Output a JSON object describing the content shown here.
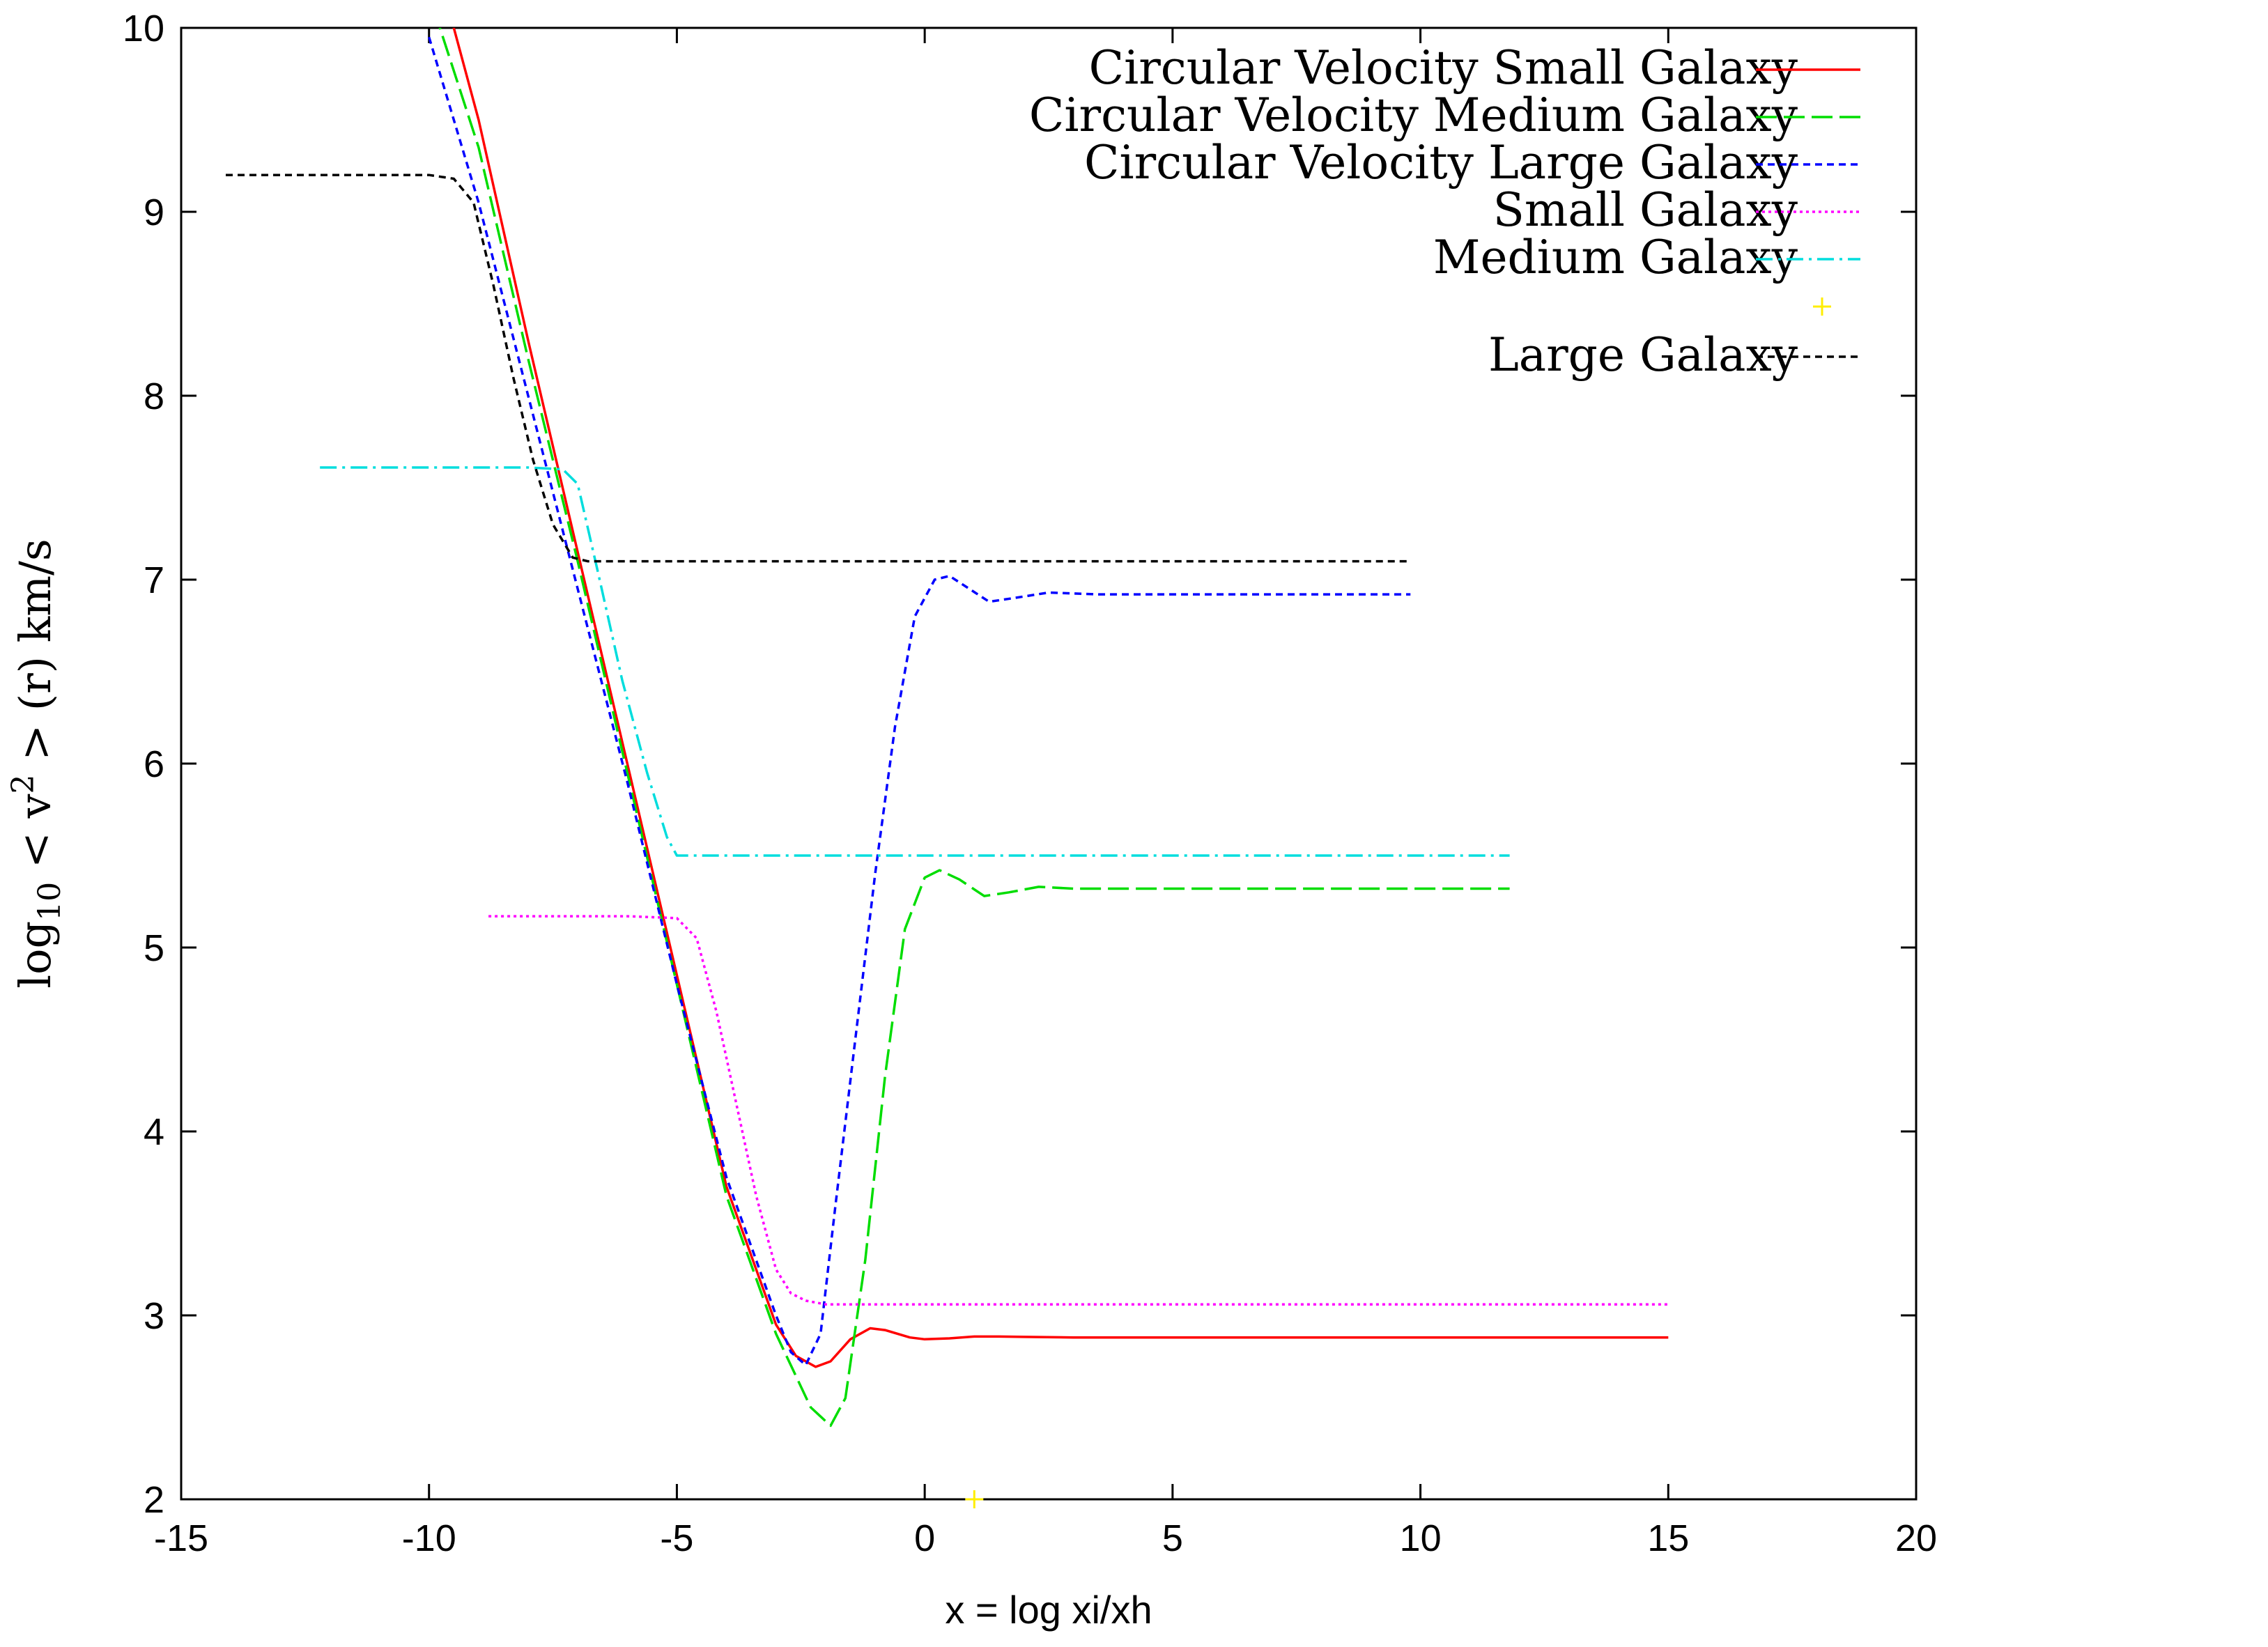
{
  "chart_data": {
    "type": "line",
    "xlabel": "x = log xi/xh",
    "ylabel_parts": {
      "pre": "log",
      "sub": "10",
      "mid": " < v",
      "sup": "2",
      "post": " > (r) km/s"
    },
    "xlim": [
      -15,
      20
    ],
    "ylim": [
      2,
      10
    ],
    "xticks": [
      -15,
      -10,
      -5,
      0,
      5,
      10,
      15,
      20
    ],
    "yticks": [
      2,
      3,
      4,
      5,
      6,
      7,
      8,
      9,
      10
    ],
    "grid": false,
    "legend_position": "top-right",
    "series": [
      {
        "name": "Circular Velocity Small Galaxy",
        "color": "#ff0000",
        "dash": "solid",
        "points": [
          [
            -10.0,
            10.5
          ],
          [
            -9,
            9.5
          ],
          [
            -8,
            8.3
          ],
          [
            -7,
            7.15
          ],
          [
            -6,
            6.0
          ],
          [
            -5,
            4.85
          ],
          [
            -4,
            3.7
          ],
          [
            -3,
            2.95
          ],
          [
            -2.6,
            2.78
          ],
          [
            -2.2,
            2.72
          ],
          [
            -1.9,
            2.75
          ],
          [
            -1.5,
            2.87
          ],
          [
            -1.1,
            2.93
          ],
          [
            -0.8,
            2.92
          ],
          [
            -0.3,
            2.88
          ],
          [
            0,
            2.87
          ],
          [
            0.5,
            2.875
          ],
          [
            1,
            2.885
          ],
          [
            1.5,
            2.885
          ],
          [
            2,
            2.883
          ],
          [
            3,
            2.88
          ],
          [
            5,
            2.88
          ],
          [
            10,
            2.88
          ],
          [
            15,
            2.88
          ]
        ]
      },
      {
        "name": "Circular Velocity Medium Galaxy",
        "color": "#00dd00",
        "dash": "long",
        "points": [
          [
            -9.9,
            10.1
          ],
          [
            -9,
            9.35
          ],
          [
            -8,
            8.2
          ],
          [
            -7,
            7.1
          ],
          [
            -6,
            5.95
          ],
          [
            -5,
            4.8
          ],
          [
            -4,
            3.65
          ],
          [
            -3,
            2.9
          ],
          [
            -2.3,
            2.5
          ],
          [
            -1.9,
            2.4
          ],
          [
            -1.6,
            2.55
          ],
          [
            -1.2,
            3.3
          ],
          [
            -0.8,
            4.3
          ],
          [
            -0.4,
            5.1
          ],
          [
            0,
            5.38
          ],
          [
            0.3,
            5.42
          ],
          [
            0.7,
            5.37
          ],
          [
            1.2,
            5.28
          ],
          [
            1.7,
            5.3
          ],
          [
            2.3,
            5.33
          ],
          [
            3,
            5.32
          ],
          [
            5,
            5.32
          ],
          [
            8,
            5.32
          ],
          [
            11.8,
            5.32
          ]
        ]
      },
      {
        "name": "Circular Velocity Large Galaxy",
        "color": "#0000ff",
        "dash": "short",
        "points": [
          [
            -10.0,
            9.95
          ],
          [
            -9,
            9.05
          ],
          [
            -8,
            8.0
          ],
          [
            -7,
            6.95
          ],
          [
            -6,
            5.9
          ],
          [
            -5,
            4.8
          ],
          [
            -4,
            3.75
          ],
          [
            -3,
            3.0
          ],
          [
            -2.7,
            2.8
          ],
          [
            -2.4,
            2.73
          ],
          [
            -2.1,
            2.9
          ],
          [
            -1.8,
            3.6
          ],
          [
            -1.4,
            4.5
          ],
          [
            -1,
            5.4
          ],
          [
            -0.6,
            6.2
          ],
          [
            -0.2,
            6.8
          ],
          [
            0.2,
            7.0
          ],
          [
            0.5,
            7.02
          ],
          [
            0.9,
            6.95
          ],
          [
            1.3,
            6.88
          ],
          [
            1.8,
            6.9
          ],
          [
            2.5,
            6.93
          ],
          [
            3.5,
            6.92
          ],
          [
            6,
            6.92
          ],
          [
            9.8,
            6.92
          ]
        ]
      },
      {
        "name": "Small Galaxy",
        "color": "#ff00ff",
        "dash": "dot",
        "points": [
          [
            -8.8,
            5.17
          ],
          [
            -6,
            5.17
          ],
          [
            -5,
            5.16
          ],
          [
            -4.6,
            5.05
          ],
          [
            -4.2,
            4.65
          ],
          [
            -3.8,
            4.15
          ],
          [
            -3.4,
            3.65
          ],
          [
            -3,
            3.25
          ],
          [
            -2.7,
            3.12
          ],
          [
            -2.4,
            3.08
          ],
          [
            -2,
            3.06
          ],
          [
            0,
            3.06
          ],
          [
            5,
            3.06
          ],
          [
            10,
            3.06
          ],
          [
            15,
            3.06
          ]
        ]
      },
      {
        "name": "Medium Galaxy",
        "color": "#00dddd",
        "dash": "dashdot",
        "points": [
          [
            -12.2,
            7.61
          ],
          [
            -8,
            7.61
          ],
          [
            -7.3,
            7.6
          ],
          [
            -7,
            7.52
          ],
          [
            -6.6,
            7.05
          ],
          [
            -6.1,
            6.45
          ],
          [
            -5.6,
            5.95
          ],
          [
            -5.2,
            5.6
          ],
          [
            -5,
            5.5
          ],
          [
            0,
            5.5
          ],
          [
            5,
            5.5
          ],
          [
            11.8,
            5.5
          ]
        ]
      },
      {
        "name": "",
        "color": "#ffee00",
        "dash": "marker",
        "points": [
          [
            1,
            2
          ]
        ]
      },
      {
        "name": "Large Galaxy",
        "color": "#000000",
        "dash": "short",
        "points": [
          [
            -14.1,
            9.2
          ],
          [
            -10,
            9.2
          ],
          [
            -9.5,
            9.18
          ],
          [
            -9.1,
            9.05
          ],
          [
            -8.7,
            8.6
          ],
          [
            -8.3,
            8.1
          ],
          [
            -7.9,
            7.65
          ],
          [
            -7.5,
            7.3
          ],
          [
            -7.1,
            7.12
          ],
          [
            -6.8,
            7.1
          ],
          [
            0,
            7.1
          ],
          [
            5,
            7.1
          ],
          [
            9.8,
            7.1
          ]
        ]
      }
    ]
  }
}
